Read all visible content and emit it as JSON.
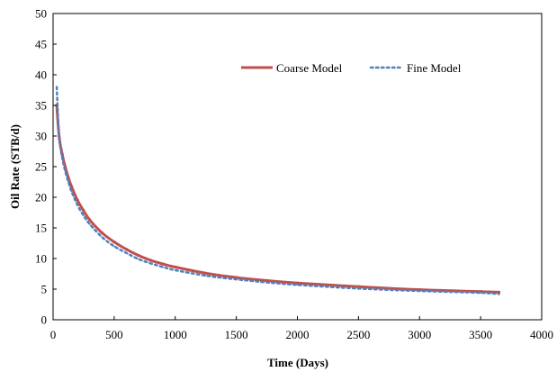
{
  "chart_data": {
    "type": "line",
    "title": "",
    "xlabel": "Time (Days)",
    "ylabel": "Oil Rate (STB/d)",
    "xlim": [
      0,
      4000
    ],
    "ylim": [
      0,
      50
    ],
    "x_ticks": [
      0,
      500,
      1000,
      1500,
      2000,
      2500,
      3000,
      3500,
      4000
    ],
    "y_ticks": [
      0,
      5,
      10,
      15,
      20,
      25,
      30,
      35,
      40,
      45,
      50
    ],
    "x_tick_labels": [
      "0",
      "500",
      "1000",
      "1500",
      "2000",
      "2500",
      "3000",
      "3500",
      "4000"
    ],
    "y_tick_labels": [
      "0",
      "5",
      "10",
      "15",
      "20",
      "25",
      "30",
      "35",
      "40",
      "45",
      "50"
    ],
    "grid": false,
    "legend": {
      "position": "top-right-inside",
      "frameless": true
    },
    "series": [
      {
        "name": "Coarse Model",
        "style": "solid-with-markers",
        "color": "#c0504d",
        "x": [
          30,
          50,
          75,
          100,
          125,
          150,
          200,
          250,
          300,
          400,
          500,
          600,
          700,
          800,
          900,
          1000,
          1250,
          1500,
          1750,
          2000,
          2500,
          3000,
          3500,
          3650
        ],
        "y": [
          35.0,
          29.8,
          27.0,
          24.9,
          23.2,
          21.8,
          19.5,
          17.8,
          16.3,
          14.2,
          12.7,
          11.5,
          10.5,
          9.7,
          9.1,
          8.6,
          7.6,
          6.9,
          6.4,
          6.0,
          5.4,
          4.9,
          4.6,
          4.5
        ]
      },
      {
        "name": "Fine Model",
        "style": "dotted",
        "color": "#4f81bd",
        "x": [
          30,
          40,
          50,
          75,
          100,
          125,
          150,
          200,
          250,
          300,
          400,
          500,
          600,
          700,
          800,
          900,
          1000,
          1250,
          1500,
          1750,
          2000,
          2500,
          3000,
          3500,
          3650
        ],
        "y": [
          38.0,
          33.2,
          29.6,
          26.4,
          24.2,
          22.5,
          21.0,
          18.7,
          17.0,
          15.6,
          13.5,
          12.0,
          10.9,
          9.9,
          9.2,
          8.6,
          8.1,
          7.2,
          6.6,
          6.1,
          5.7,
          5.1,
          4.7,
          4.4,
          4.2
        ]
      }
    ]
  }
}
